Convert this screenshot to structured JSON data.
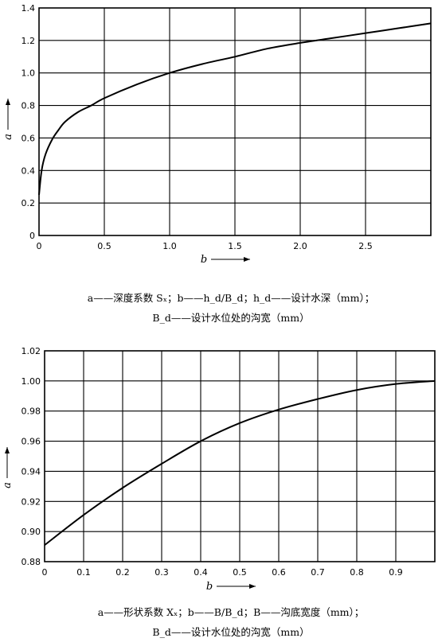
{
  "chart_data": [
    {
      "type": "line",
      "xlabel": "b",
      "ylabel": "a",
      "xlim": [
        0,
        3.0
      ],
      "ylim": [
        0,
        1.4
      ],
      "x_ticks": [
        "0",
        "0.5",
        "1.0",
        "1.5",
        "2.0",
        "2.5"
      ],
      "y_ticks": [
        "0",
        "0.2",
        "0.4",
        "0.6",
        "0.8",
        "1.0",
        "1.2",
        "1.4"
      ],
      "grid": true,
      "series": [
        {
          "x": [
            0.0,
            0.02,
            0.05,
            0.1,
            0.15,
            0.2,
            0.3,
            0.4,
            0.5,
            0.75,
            1.0,
            1.25,
            1.5,
            1.75,
            2.0,
            2.25,
            2.5,
            2.75,
            3.0
          ],
          "y": [
            0.25,
            0.4,
            0.5,
            0.59,
            0.65,
            0.7,
            0.76,
            0.8,
            0.845,
            0.93,
            1.0,
            1.055,
            1.1,
            1.15,
            1.185,
            1.215,
            1.245,
            1.275,
            1.305
          ]
        }
      ],
      "caption_lines": [
        "a——深度系数 Sₓ；b——h_d/B_d；h_d——设计水深（mm）；",
        "B_d——设计水位处的沟宽（mm）"
      ]
    },
    {
      "type": "line",
      "xlabel": "b",
      "ylabel": "a",
      "xlim": [
        0,
        1.0
      ],
      "ylim": [
        0.88,
        1.02
      ],
      "x_ticks": [
        "0",
        "0.1",
        "0.2",
        "0.3",
        "0.4",
        "0.5",
        "0.6",
        "0.7",
        "0.8",
        "0.9"
      ],
      "y_ticks": [
        "0.88",
        "0.90",
        "0.92",
        "0.94",
        "0.96",
        "0.98",
        "1.00",
        "1.02"
      ],
      "grid": true,
      "series": [
        {
          "x": [
            0.0,
            0.1,
            0.2,
            0.3,
            0.4,
            0.5,
            0.6,
            0.7,
            0.8,
            0.9,
            1.0
          ],
          "y": [
            0.891,
            0.911,
            0.929,
            0.945,
            0.96,
            0.972,
            0.981,
            0.988,
            0.994,
            0.998,
            1.0
          ]
        }
      ],
      "caption_lines": [
        "a——形状系数 Xₓ；b——B/B_d；B——沟底宽度（mm）；",
        "B_d——设计水位处的沟宽（mm）"
      ]
    }
  ]
}
